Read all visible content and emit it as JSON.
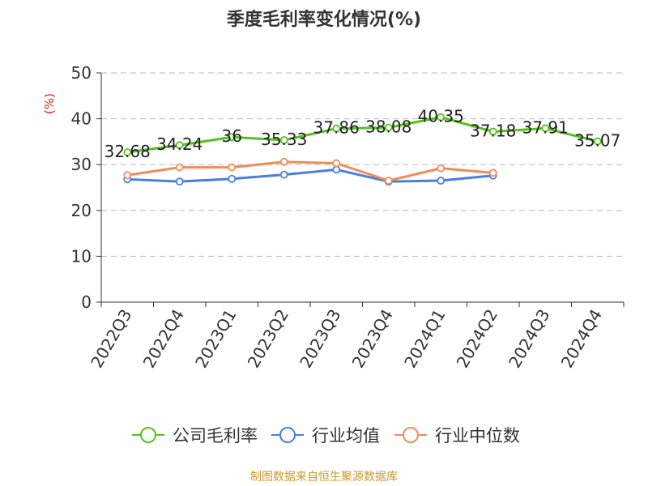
{
  "title": "季度毛利率变化情况(%)",
  "footer": "制图数据来自恒生聚源数据库",
  "chart_data": {
    "type": "line",
    "title": "季度毛利率变化情况(%)",
    "ylabel": "(%)",
    "xlabel": "",
    "ylim": [
      0,
      50
    ],
    "yticks": [
      0,
      10,
      20,
      30,
      40,
      50
    ],
    "grid": true,
    "legend_position": "bottom",
    "categories": [
      "2022Q3",
      "2022Q4",
      "2023Q1",
      "2023Q2",
      "2023Q3",
      "2023Q4",
      "2024Q1",
      "2024Q2",
      "2024Q3",
      "2024Q4"
    ],
    "series": [
      {
        "name": "公司毛利率",
        "color": "#52c41a",
        "show_labels": true,
        "labels": [
          "32.68",
          "34.24",
          "36",
          "35.33",
          "37.86",
          "38.08",
          "40.35",
          "37.18",
          "37.91",
          "35.07"
        ],
        "values": [
          32.68,
          34.24,
          36,
          35.33,
          37.86,
          38.08,
          40.35,
          37.18,
          37.91,
          35.07
        ]
      },
      {
        "name": "行业均值",
        "color": "#4a7ee0",
        "show_labels": false,
        "values": [
          26.8,
          26.3,
          26.9,
          27.8,
          28.9,
          26.3,
          26.5,
          27.6,
          null,
          null
        ]
      },
      {
        "name": "行业中位数",
        "color": "#f08c5a",
        "show_labels": false,
        "values": [
          27.7,
          29.4,
          29.4,
          30.6,
          30.3,
          26.5,
          29.2,
          28.2,
          null,
          null
        ]
      }
    ]
  }
}
